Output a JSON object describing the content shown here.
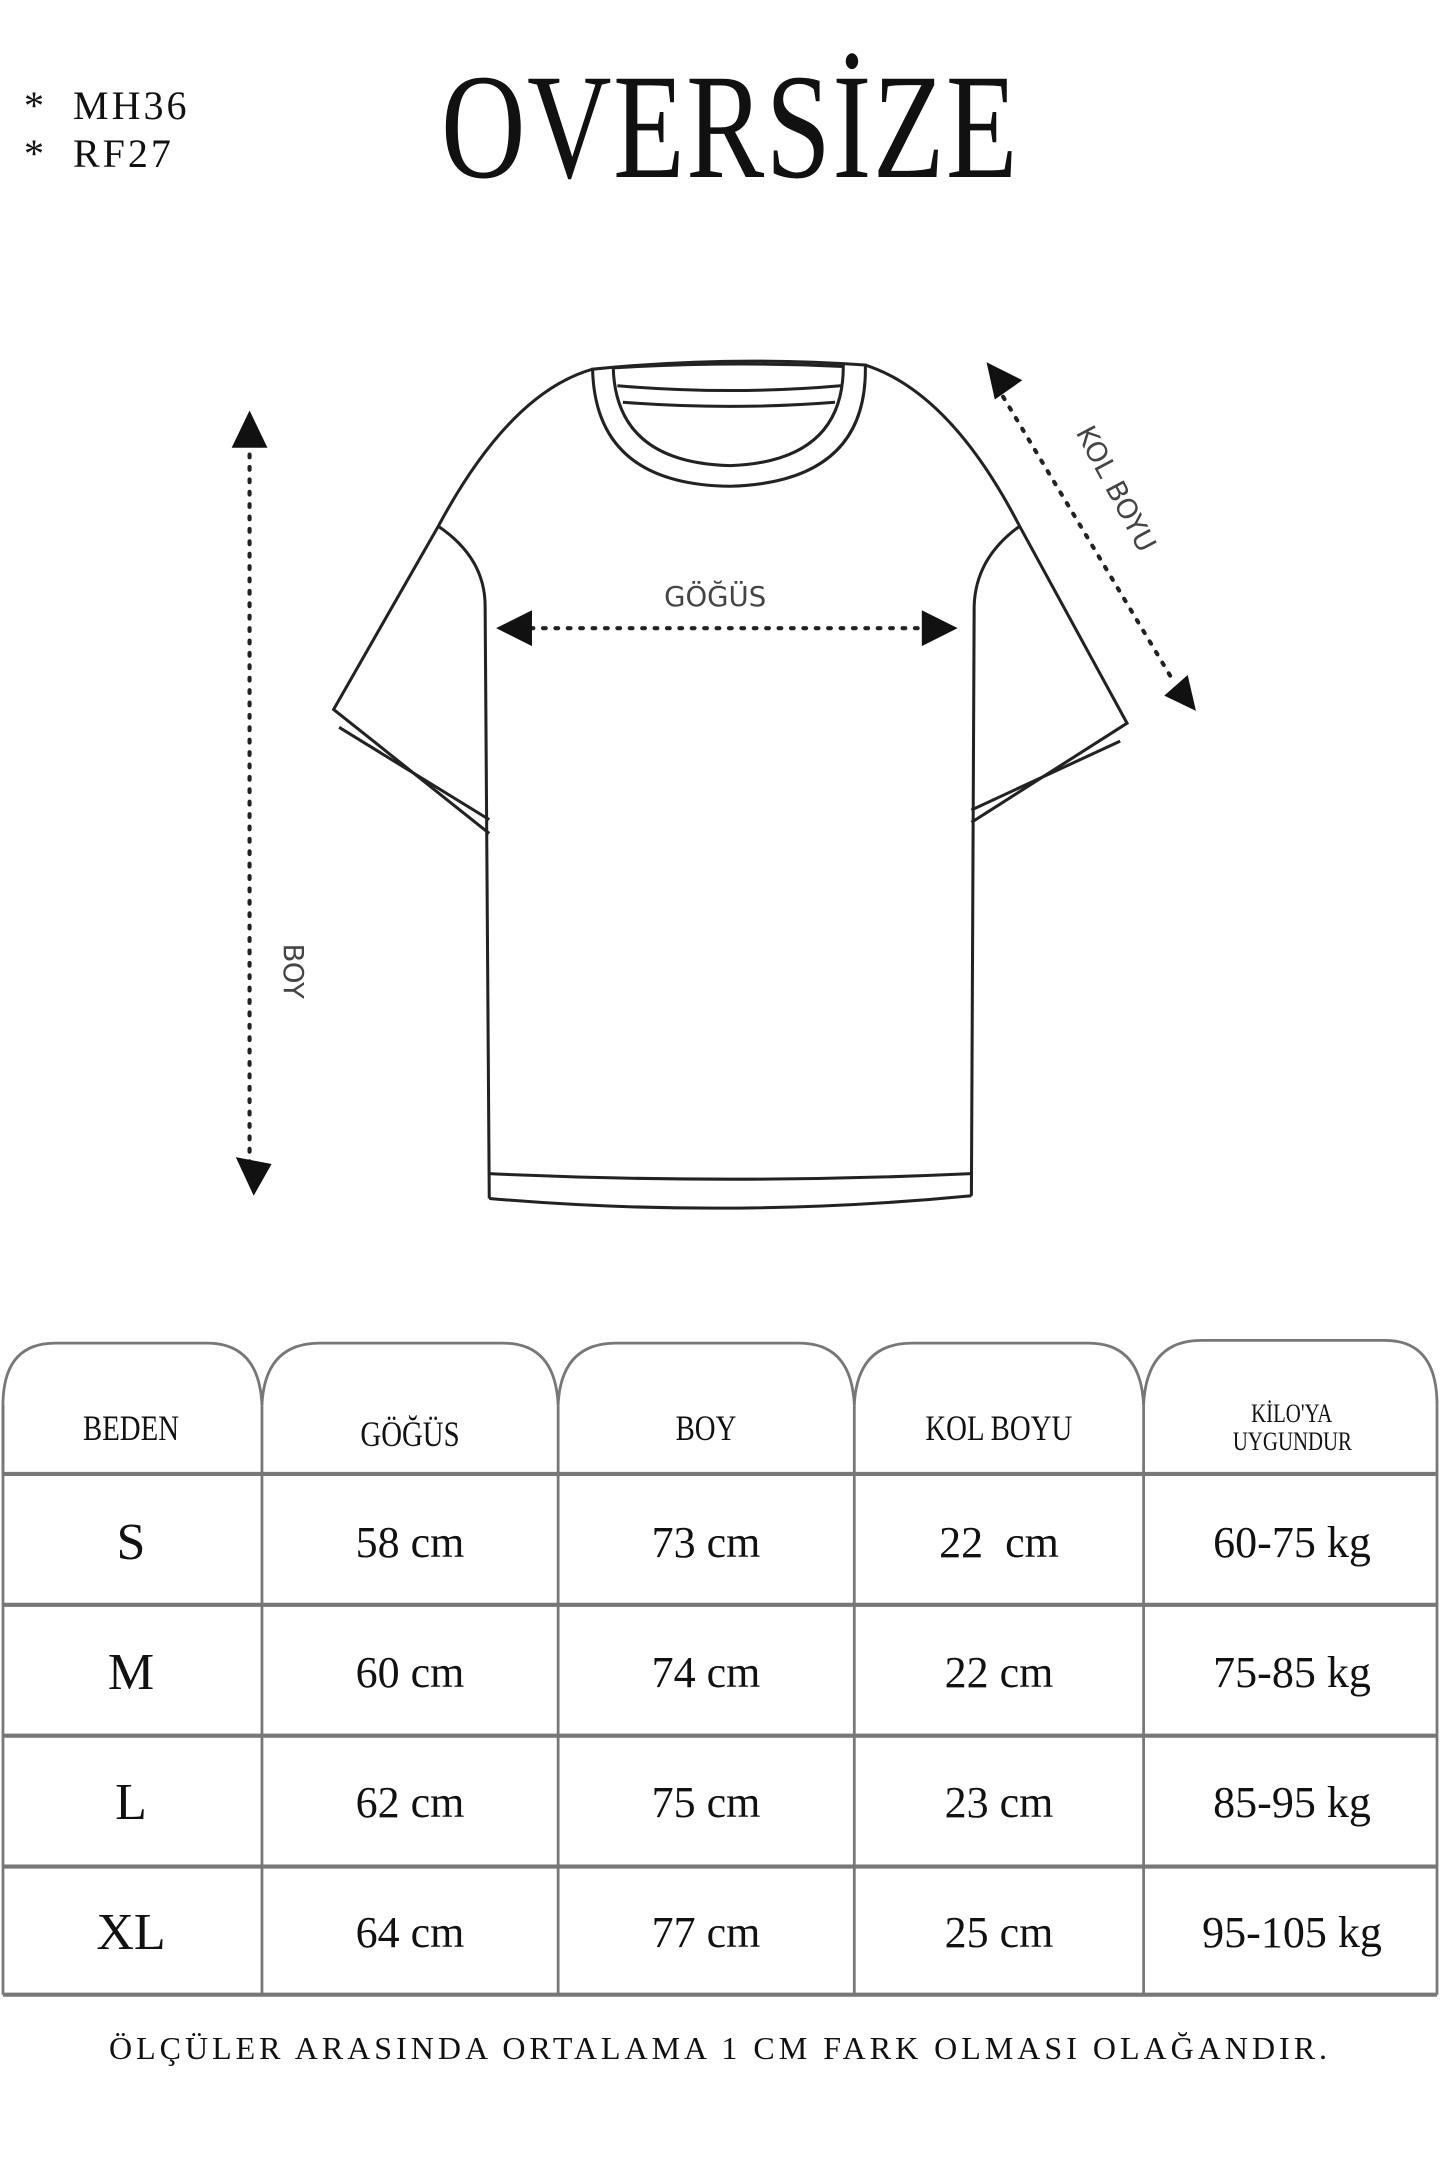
{
  "codes": [
    "*  MH36",
    "*  RF27"
  ],
  "title": "OVERSİZE",
  "diagram": {
    "chest_label": "GÖĞÜS",
    "length_label": "BOY",
    "sleeve_label": "KOL BOYU"
  },
  "table": {
    "headers": [
      "BEDEN",
      "GÖĞÜS",
      "BOY",
      "KOL BOYU",
      "KİLO'YA UYGUNDUR"
    ],
    "header_last_lines": [
      "KİLO'YA",
      "UYGUNDUR"
    ],
    "rows": [
      [
        "S",
        "58 cm",
        "73 cm",
        "22  cm",
        "60-75 kg"
      ],
      [
        "M",
        "60 cm",
        "74 cm",
        "22 cm",
        "75-85 kg"
      ],
      [
        "L",
        "62 cm",
        "75 cm",
        "23 cm",
        "85-95 kg"
      ],
      [
        "XL",
        "64 cm",
        "77 cm",
        "25 cm",
        "95-105 kg"
      ]
    ]
  },
  "footer": "ÖLÇÜLER ARASINDA ORTALAMA 1 CM FARK OLMASI OLAĞANDIR."
}
